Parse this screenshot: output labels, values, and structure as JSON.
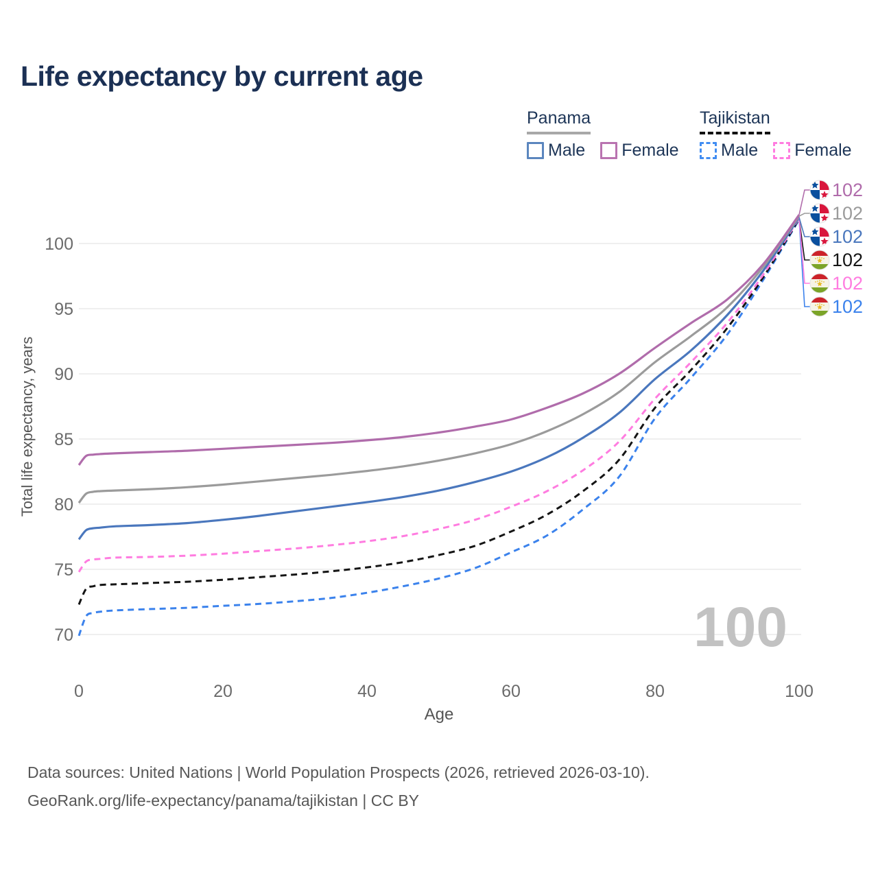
{
  "page": {
    "title": "Life expectancy by current age"
  },
  "colors": {
    "title_text": "#1b3054",
    "legend_text": "#1d3557",
    "axis_tick_text": "#6b6b6b",
    "axis_title_text": "#555555",
    "grid_line": "#eaeaea",
    "watermark_text": "#c2c2c2",
    "footer_text": "#575757",
    "panama_underline": "#a8a8a8",
    "tajikistan_underline": "#111111"
  },
  "legend": {
    "groups": [
      {
        "title": "Panama",
        "underline_style": "solid",
        "items": [
          {
            "label": "Male",
            "color": "#5b86be",
            "dash": false
          },
          {
            "label": "Female",
            "color": "#b973b0",
            "dash": false
          }
        ]
      },
      {
        "title": "Tajikistan",
        "underline_style": "dashed",
        "items": [
          {
            "label": "Male",
            "color": "#418df2",
            "dash": true
          },
          {
            "label": "Female",
            "color": "#ff7ce0",
            "dash": true
          }
        ]
      }
    ]
  },
  "chart_data": {
    "type": "line",
    "title": "Life expectancy by current age",
    "xlabel": "Age",
    "ylabel": "Total life expectancy, years",
    "xlim": [
      0,
      100
    ],
    "ylim": [
      68,
      103
    ],
    "xticks": [
      0,
      20,
      40,
      60,
      80,
      100
    ],
    "yticks": [
      70,
      75,
      80,
      85,
      90,
      95,
      100
    ],
    "grid": "horizontal",
    "age_watermark": "100",
    "ages": [
      0,
      1,
      2,
      3,
      5,
      10,
      15,
      20,
      25,
      30,
      35,
      40,
      45,
      50,
      55,
      60,
      65,
      70,
      75,
      80,
      85,
      90,
      95,
      100
    ],
    "series": [
      {
        "name": "Tajikistan Male",
        "country": "Tajikistan",
        "sex": "Male",
        "color": "#3b82ec",
        "dash": true,
        "flag": "tajikistan",
        "end_label": "102",
        "end_row": 5,
        "values": [
          69.9,
          71.4,
          71.65,
          71.75,
          71.85,
          71.95,
          72.05,
          72.2,
          72.35,
          72.55,
          72.8,
          73.2,
          73.7,
          74.3,
          75.1,
          76.3,
          77.6,
          79.6,
          82.1,
          86.6,
          89.7,
          93.0,
          97.2,
          101.85
        ]
      },
      {
        "name": "Tajikistan Both sexes",
        "country": "Tajikistan",
        "sex": "Both",
        "color": "#151515",
        "dash": true,
        "flag": "tajikistan",
        "end_label": "102",
        "end_row": 3,
        "values": [
          72.3,
          73.5,
          73.7,
          73.8,
          73.85,
          73.95,
          74.05,
          74.2,
          74.4,
          74.6,
          74.85,
          75.15,
          75.55,
          76.1,
          76.8,
          77.9,
          79.2,
          81.0,
          83.4,
          87.4,
          90.3,
          93.5,
          97.4,
          101.9
        ]
      },
      {
        "name": "Tajikistan Female",
        "country": "Tajikistan",
        "sex": "Female",
        "color": "#ff7ce0",
        "dash": true,
        "flag": "tajikistan",
        "end_label": "102",
        "end_row": 4,
        "values": [
          74.8,
          75.6,
          75.75,
          75.8,
          75.9,
          75.95,
          76.05,
          76.2,
          76.4,
          76.6,
          76.85,
          77.15,
          77.55,
          78.1,
          78.8,
          79.8,
          81.0,
          82.6,
          84.8,
          88.1,
          90.9,
          93.9,
          97.6,
          101.95
        ]
      },
      {
        "name": "Panama Male",
        "country": "Panama",
        "sex": "Male",
        "color": "#4a77bd",
        "dash": false,
        "flag": "panama",
        "end_label": "102",
        "end_row": 2,
        "values": [
          77.3,
          78.0,
          78.15,
          78.2,
          78.3,
          78.4,
          78.55,
          78.8,
          79.1,
          79.45,
          79.8,
          80.15,
          80.55,
          81.05,
          81.7,
          82.5,
          83.6,
          85.1,
          87.0,
          89.6,
          91.8,
          94.5,
          97.9,
          102.0
        ]
      },
      {
        "name": "Panama Both sexes",
        "country": "Panama",
        "sex": "Both",
        "color": "#9b9b9b",
        "dash": false,
        "flag": "panama",
        "end_label": "102",
        "end_row": 1,
        "values": [
          80.1,
          80.8,
          80.95,
          81.0,
          81.05,
          81.15,
          81.3,
          81.5,
          81.75,
          82.0,
          82.25,
          82.55,
          82.9,
          83.35,
          83.9,
          84.6,
          85.6,
          86.9,
          88.6,
          90.9,
          92.9,
          95.1,
          98.2,
          102.1
        ]
      },
      {
        "name": "Panama Female",
        "country": "Panama",
        "sex": "Female",
        "color": "#b06cab",
        "dash": false,
        "flag": "panama",
        "end_label": "102",
        "end_row": 0,
        "values": [
          83.0,
          83.7,
          83.8,
          83.85,
          83.9,
          84.0,
          84.1,
          84.25,
          84.4,
          84.55,
          84.7,
          84.9,
          85.15,
          85.5,
          85.95,
          86.5,
          87.4,
          88.5,
          90.0,
          92.0,
          93.9,
          95.7,
          98.4,
          102.2
        ]
      }
    ],
    "flag_colors": {
      "panama": {
        "blue": "#0a4f9e",
        "red": "#d9163c",
        "white": "#ffffff"
      },
      "tajikistan": {
        "red": "#cc2229",
        "white": "#f6f3e6",
        "green": "#7ba428",
        "gold": "#e8b923"
      }
    }
  },
  "footer": {
    "line1": "Data sources: United Nations | World Population Prospects (2026, retrieved 2026-03-10).",
    "line2": "GeoRank.org/life-expectancy/panama/tajikistan | CC BY"
  }
}
